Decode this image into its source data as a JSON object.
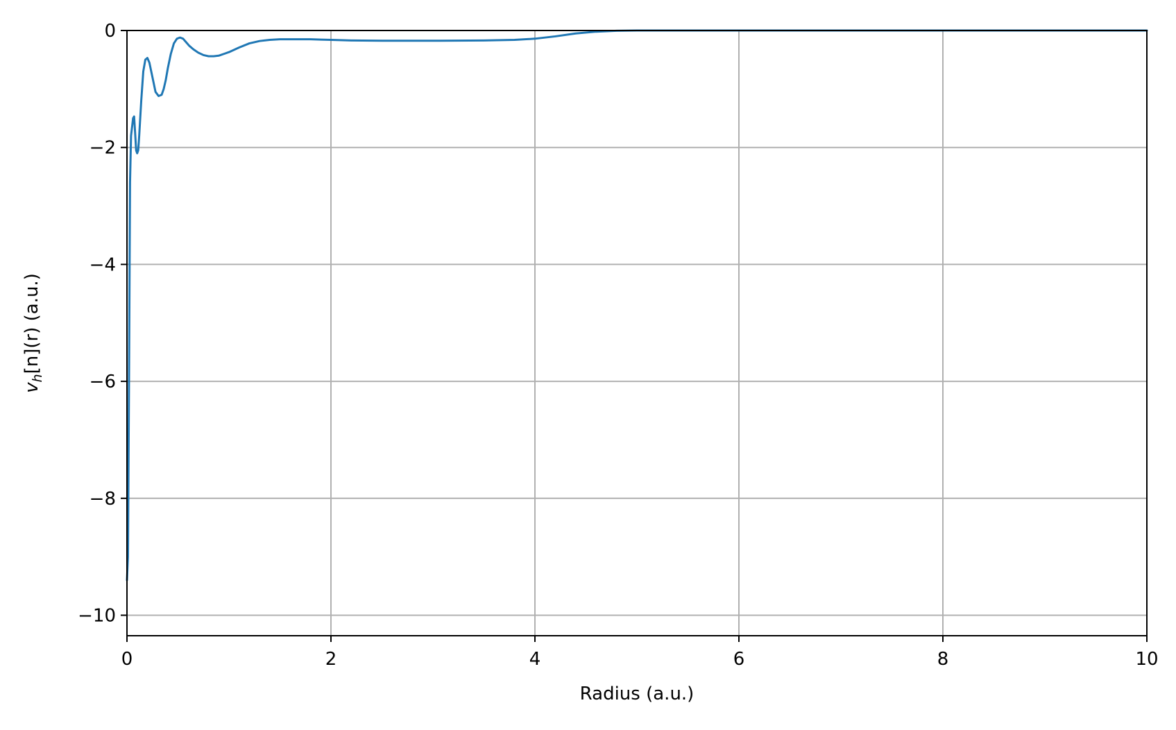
{
  "chart_data": {
    "type": "line",
    "title": "",
    "xlabel": "Radius (a.u.)",
    "ylabel_parts": {
      "base": "v",
      "subscript": "h",
      "rest": "[n](r) (a.u.)"
    },
    "xlim": [
      0,
      10
    ],
    "ylim": [
      -10.35,
      0
    ],
    "xticks": [
      0,
      2,
      4,
      6,
      8,
      10
    ],
    "yticks": [
      0,
      -2,
      -4,
      -6,
      -8,
      -10
    ],
    "xtick_labels": [
      "0",
      "2",
      "4",
      "6",
      "8",
      "10"
    ],
    "ytick_labels": [
      "0",
      "−2",
      "−4",
      "−6",
      "−8",
      "−10"
    ],
    "grid": true,
    "series": [
      {
        "color": "#1f77b4",
        "x": [
          0.0,
          0.01,
          0.02,
          0.03,
          0.04,
          0.05,
          0.06,
          0.07,
          0.08,
          0.09,
          0.1,
          0.11,
          0.12,
          0.14,
          0.16,
          0.18,
          0.2,
          0.22,
          0.25,
          0.28,
          0.31,
          0.34,
          0.36,
          0.38,
          0.4,
          0.43,
          0.46,
          0.49,
          0.52,
          0.55,
          0.58,
          0.61,
          0.65,
          0.7,
          0.75,
          0.8,
          0.85,
          0.9,
          0.95,
          1.0,
          1.05,
          1.1,
          1.2,
          1.3,
          1.4,
          1.5,
          1.6,
          1.7,
          1.8,
          1.9,
          2.0,
          2.2,
          2.5,
          3.0,
          3.5,
          3.8,
          4.0,
          4.2,
          4.4,
          4.6,
          4.8,
          5.0,
          5.5,
          6.0,
          7.0,
          8.0,
          9.0,
          10.0
        ],
        "y": [
          -9.4,
          -9.0,
          -6.0,
          -2.6,
          -1.8,
          -1.65,
          -1.5,
          -1.47,
          -1.75,
          -2.05,
          -2.1,
          -2.05,
          -1.8,
          -1.2,
          -0.7,
          -0.5,
          -0.47,
          -0.55,
          -0.8,
          -1.05,
          -1.12,
          -1.1,
          -1.0,
          -0.85,
          -0.65,
          -0.4,
          -0.22,
          -0.14,
          -0.12,
          -0.14,
          -0.2,
          -0.26,
          -0.32,
          -0.38,
          -0.42,
          -0.44,
          -0.44,
          -0.43,
          -0.4,
          -0.37,
          -0.33,
          -0.29,
          -0.22,
          -0.18,
          -0.16,
          -0.15,
          -0.15,
          -0.15,
          -0.15,
          -0.155,
          -0.16,
          -0.17,
          -0.175,
          -0.175,
          -0.17,
          -0.16,
          -0.14,
          -0.1,
          -0.05,
          -0.02,
          -0.005,
          0.0,
          0.0,
          0.0,
          0.0,
          0.0,
          0.0,
          0.0
        ]
      }
    ]
  }
}
